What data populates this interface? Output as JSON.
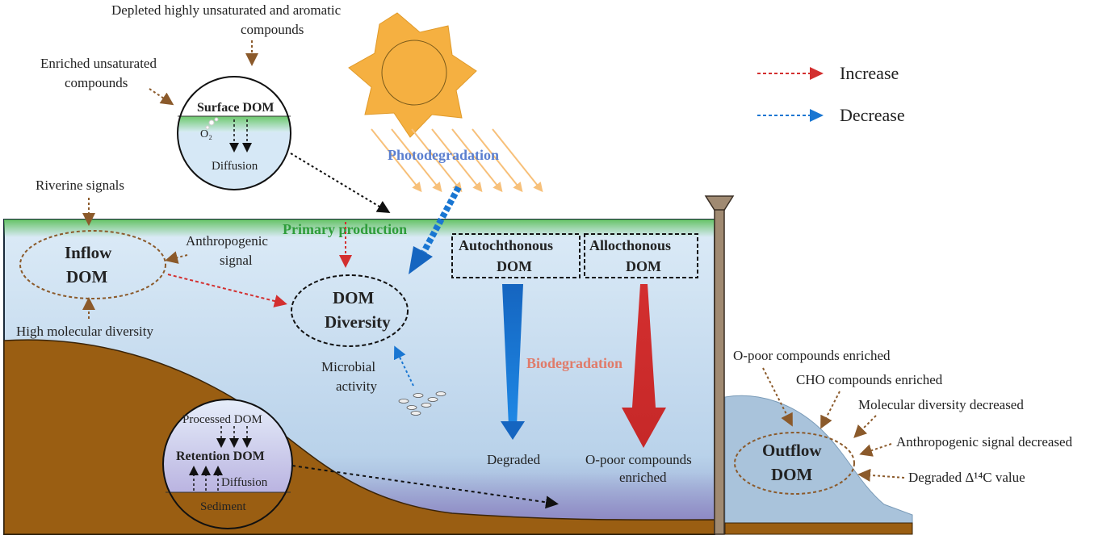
{
  "legend": {
    "increase": {
      "label": "Increase",
      "color": "#d32f2f"
    },
    "decrease": {
      "label": "Decrease",
      "color": "#1976d2"
    }
  },
  "surface_annotations": {
    "depleted_line1": "Depleted  highly unsaturated and aromatic",
    "depleted_line2": "compounds",
    "enriched_line1": "Enriched unsaturated",
    "enriched_line2": "compounds"
  },
  "surface_inset": {
    "title": "Surface DOM",
    "o2": "O₂",
    "diffusion": "Diffusion"
  },
  "processes": {
    "photodegradation": "Photodegradation",
    "primary_production": "Primary production",
    "biodegradation": "Biodegradation",
    "microbial_line1": "Microbial",
    "microbial_line2": "activity"
  },
  "inflow": {
    "title_line1": "Inflow",
    "title_line2": "DOM",
    "riverine": "Riverine signals",
    "anthro_line1": "Anthropogenic",
    "anthro_line2": "signal",
    "high_diversity": "High molecular diversity"
  },
  "dom_diversity": {
    "line1": "DOM",
    "line2": "Diversity"
  },
  "autochthonous": {
    "line1": "Autochthonous",
    "line2": "DOM",
    "result": "Degraded"
  },
  "allochthonous": {
    "line1": "Allocthonous",
    "line2": "DOM",
    "result_line1": "O-poor compounds",
    "result_line2": "enriched"
  },
  "retention_inset": {
    "processed": "Processed DOM",
    "title": "Retention DOM",
    "diffusion": "Diffusion",
    "sediment": "Sediment"
  },
  "outflow": {
    "title_line1": "Outflow",
    "title_line2": "DOM",
    "items": [
      "O-poor compounds enriched",
      "CHO compounds enriched",
      "Molecular diversity decreased",
      "Anthropogenic signal decreased",
      "Degraded Δ¹⁴C value"
    ]
  },
  "colors": {
    "water_top": "#d7e8f6",
    "water_bottom": "#9ab7d6",
    "sediment": "#9a5e12",
    "sun": "#f5b041",
    "brown_arrow": "#8b5a2b",
    "green_label": "#2e9d3a",
    "photo_label": "#5b7fcf",
    "bio_label": "#e07b6a"
  }
}
